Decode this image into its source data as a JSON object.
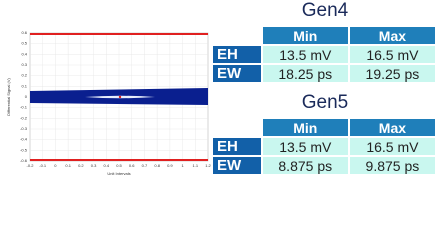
{
  "chart_data": {
    "type": "eye",
    "xlabel": "Unit Intervals",
    "ylabel": "Differential Signal (V)",
    "xlim": [
      -0.2,
      1.2
    ],
    "xticks": [
      -0.2,
      -0.1,
      0,
      0.1,
      0.2,
      0.3,
      0.4,
      0.5,
      0.6,
      0.7,
      0.8,
      0.9,
      1,
      1.1,
      1.2
    ],
    "ylim": [
      -0.6,
      0.6
    ],
    "yticks": [
      0.6,
      0.5,
      0.4,
      0.3,
      0.2,
      0.1,
      0,
      -0.1,
      -0.2,
      -0.3,
      -0.4,
      -0.5,
      -0.6
    ],
    "color": "#0a1f8f",
    "grid": true
  },
  "tables": [
    {
      "title": "Gen4",
      "columns": [
        "Min",
        "Max"
      ],
      "rows": [
        [
          "EH",
          "13.5 mV",
          "16.5 mV"
        ],
        [
          "EW",
          "18.25 ps",
          "19.25 ps"
        ]
      ]
    },
    {
      "title": "Gen5",
      "columns": [
        "Min",
        "Max"
      ],
      "rows": [
        [
          "EH",
          "13.5 mV",
          "16.5 mV"
        ],
        [
          "EW",
          "8.875 ps",
          "9.875 ps"
        ]
      ]
    }
  ]
}
